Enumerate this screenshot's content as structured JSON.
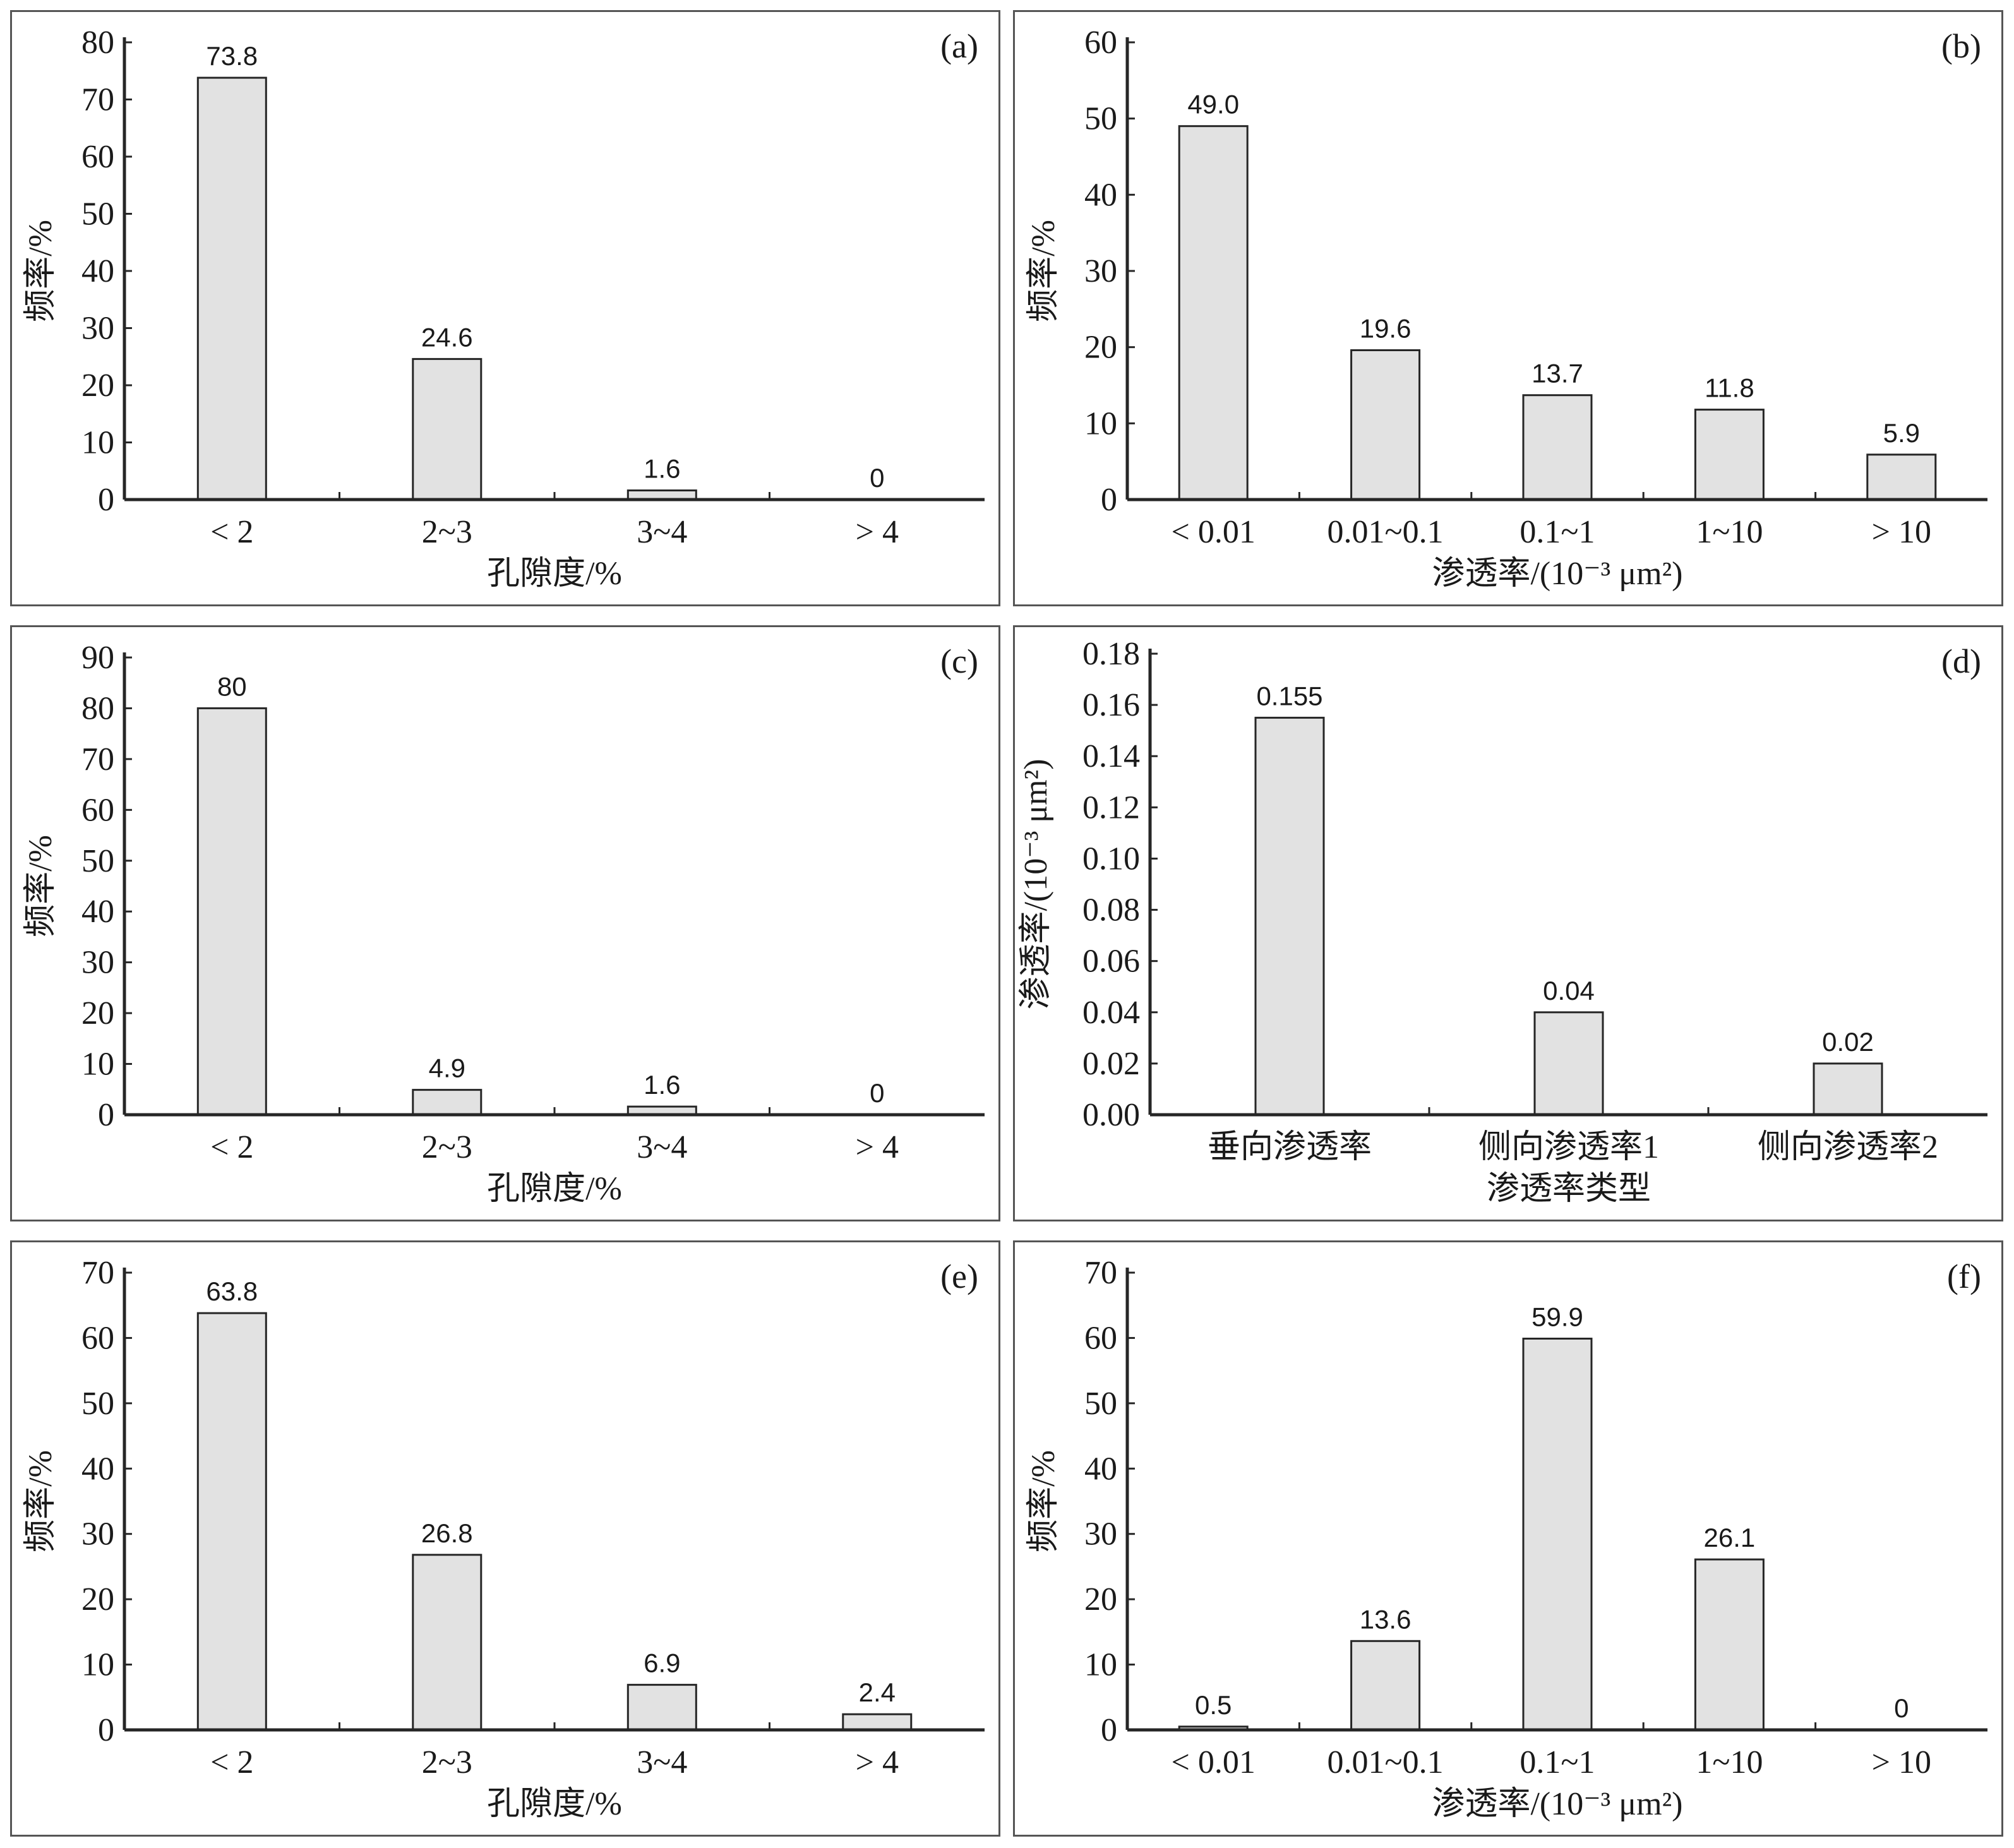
{
  "chart_data": [
    {
      "type": "bar",
      "panel_label": "(a)",
      "categories": [
        "< 2",
        "2~3",
        "3~4",
        "> 4"
      ],
      "values": [
        73.8,
        24.6,
        1.6,
        0
      ],
      "data_labels": [
        "73.8",
        "24.6",
        "1.6",
        "0"
      ],
      "xlabel": "孔隙度/%",
      "ylabel": "频率/%",
      "ylim": [
        0,
        80
      ],
      "yticks": [
        "0",
        "10",
        "20",
        "30",
        "40",
        "50",
        "60",
        "70",
        "80"
      ]
    },
    {
      "type": "bar",
      "panel_label": "(b)",
      "categories": [
        "< 0.01",
        "0.01~0.1",
        "0.1~1",
        "1~10",
        "> 10"
      ],
      "values": [
        49.0,
        19.6,
        13.7,
        11.8,
        5.9
      ],
      "data_labels": [
        "49.0",
        "19.6",
        "13.7",
        "11.8",
        "5.9"
      ],
      "xlabel": "渗透率/(10⁻³ μm²)",
      "ylabel": "频率/%",
      "ylim": [
        0,
        60
      ],
      "yticks": [
        "0",
        "10",
        "20",
        "30",
        "40",
        "50",
        "60"
      ]
    },
    {
      "type": "bar",
      "panel_label": "(c)",
      "categories": [
        "< 2",
        "2~3",
        "3~4",
        "> 4"
      ],
      "values": [
        80,
        4.9,
        1.6,
        0
      ],
      "data_labels": [
        "80",
        "4.9",
        "1.6",
        "0"
      ],
      "xlabel": "孔隙度/%",
      "ylabel": "频率/%",
      "ylim": [
        0,
        90
      ],
      "yticks": [
        "0",
        "10",
        "20",
        "30",
        "40",
        "50",
        "60",
        "70",
        "80",
        "90"
      ]
    },
    {
      "type": "bar",
      "panel_label": "(d)",
      "categories": [
        "垂向渗透率",
        "侧向渗透率1",
        "侧向渗透率2"
      ],
      "values": [
        0.155,
        0.04,
        0.02
      ],
      "data_labels": [
        "0.155",
        "0.04",
        "0.02"
      ],
      "xlabel": "渗透率类型",
      "ylabel": "渗透率/(10⁻³ μm²)",
      "ylim": [
        0,
        0.18
      ],
      "yticks": [
        "0.00",
        "0.02",
        "0.04",
        "0.06",
        "0.08",
        "0.10",
        "0.12",
        "0.14",
        "0.16",
        "0.18"
      ]
    },
    {
      "type": "bar",
      "panel_label": "(e)",
      "categories": [
        "< 2",
        "2~3",
        "3~4",
        "> 4"
      ],
      "values": [
        63.8,
        26.8,
        6.9,
        2.4
      ],
      "data_labels": [
        "63.8",
        "26.8",
        "6.9",
        "2.4"
      ],
      "xlabel": "孔隙度/%",
      "ylabel": "频率/%",
      "ylim": [
        0,
        70
      ],
      "yticks": [
        "0",
        "10",
        "20",
        "30",
        "40",
        "50",
        "60",
        "70"
      ]
    },
    {
      "type": "bar",
      "panel_label": "(f)",
      "categories": [
        "< 0.01",
        "0.01~0.1",
        "0.1~1",
        "1~10",
        "> 10"
      ],
      "values": [
        0.5,
        13.6,
        59.9,
        26.1,
        0
      ],
      "data_labels": [
        "0.5",
        "13.6",
        "59.9",
        "26.1",
        "0"
      ],
      "xlabel": "渗透率/(10⁻³ μm²)",
      "ylabel": "频率/%",
      "ylim": [
        0,
        70
      ],
      "yticks": [
        "0",
        "10",
        "20",
        "30",
        "40",
        "50",
        "60",
        "70"
      ]
    }
  ]
}
